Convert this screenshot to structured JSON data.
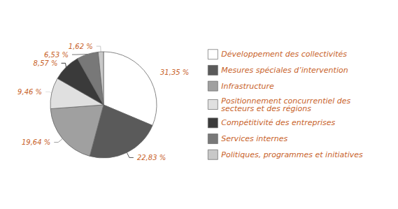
{
  "chart_data": {
    "type": "pie",
    "categories": [
      "Développement des collectivités",
      "Mesures spéciales d’intervention",
      "Infrastructure",
      "Positionnement concurrentiel des\nsecteurs et des régions",
      "Compétitivité des entreprises",
      "Services internes",
      "Politiques, programmes et initiatives"
    ],
    "values": [
      31.35,
      22.83,
      19.64,
      9.46,
      8.57,
      6.53,
      1.62
    ],
    "value_labels": [
      "31,35 %",
      "22,83 %",
      "19,64 %",
      "9,46 %",
      "8,57 %",
      "6,53 %",
      "1,62 %"
    ],
    "colors": [
      "#ffffff",
      "#5a5a5a",
      "#a0a0a0",
      "#e0e0e0",
      "#3a3a3a",
      "#787878",
      "#c8c8c8"
    ],
    "data_labels": true,
    "legend": "right"
  }
}
